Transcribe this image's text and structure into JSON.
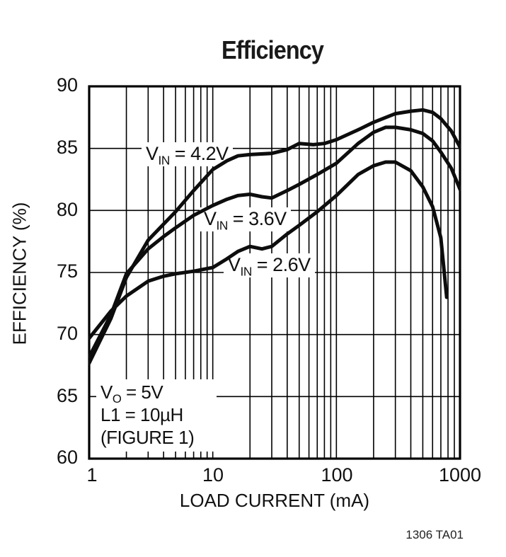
{
  "title": "Efficiency",
  "footer_code": "1306 TA01",
  "annotation": {
    "lines": [
      {
        "pre": "V",
        "sub": "O",
        "post": " = 5V"
      },
      {
        "pre": "L1 = 10µH",
        "sub": "",
        "post": ""
      },
      {
        "pre": "(FIGURE 1)",
        "sub": "",
        "post": ""
      }
    ]
  },
  "chart_data": {
    "type": "line",
    "title": "Efficiency",
    "xlabel": "LOAD CURRENT (mA)",
    "ylabel": "EFFICIENCY (%)",
    "x_scale": "log",
    "xlim": [
      1,
      1000
    ],
    "ylim": [
      60,
      90
    ],
    "x_ticks": [
      "1",
      "10",
      "100",
      "1000"
    ],
    "y_ticks": [
      "60",
      "65",
      "70",
      "75",
      "80",
      "85",
      "90"
    ],
    "grid": true,
    "line_color": "#0d0d0d",
    "series": [
      {
        "name": "VIN = 4.2V",
        "label": {
          "pre": "V",
          "sub": "IN",
          "post": " = 4.2V"
        },
        "points": [
          [
            1,
            67.7
          ],
          [
            1.5,
            71.3
          ],
          [
            2,
            74.6
          ],
          [
            3,
            77.6
          ],
          [
            4,
            78.9
          ],
          [
            5,
            79.9
          ],
          [
            7,
            81.6
          ],
          [
            10,
            83.3
          ],
          [
            13,
            84.0
          ],
          [
            16,
            84.4
          ],
          [
            20,
            84.5
          ],
          [
            30,
            84.6
          ],
          [
            40,
            84.9
          ],
          [
            50,
            85.4
          ],
          [
            65,
            85.3
          ],
          [
            80,
            85.4
          ],
          [
            100,
            85.7
          ],
          [
            150,
            86.5
          ],
          [
            200,
            87.1
          ],
          [
            300,
            87.8
          ],
          [
            400,
            88.0
          ],
          [
            500,
            88.1
          ],
          [
            600,
            87.9
          ],
          [
            700,
            87.4
          ],
          [
            850,
            86.4
          ],
          [
            1000,
            85.1
          ]
        ]
      },
      {
        "name": "VIN = 3.6V",
        "label": {
          "pre": "V",
          "sub": "IN",
          "post": " = 3.6V"
        },
        "points": [
          [
            1,
            68.2
          ],
          [
            1.5,
            71.6
          ],
          [
            2,
            74.9
          ],
          [
            3,
            76.9
          ],
          [
            4,
            77.9
          ],
          [
            5,
            78.6
          ],
          [
            7,
            79.6
          ],
          [
            10,
            80.4
          ],
          [
            13,
            80.9
          ],
          [
            16,
            81.2
          ],
          [
            20,
            81.3
          ],
          [
            25,
            81.1
          ],
          [
            30,
            81.0
          ],
          [
            40,
            81.6
          ],
          [
            50,
            82.1
          ],
          [
            70,
            82.9
          ],
          [
            100,
            83.8
          ],
          [
            150,
            85.4
          ],
          [
            200,
            86.3
          ],
          [
            250,
            86.7
          ],
          [
            300,
            86.7
          ],
          [
            400,
            86.5
          ],
          [
            500,
            86.2
          ],
          [
            600,
            85.6
          ],
          [
            700,
            84.7
          ],
          [
            850,
            83.4
          ],
          [
            1000,
            81.7
          ]
        ]
      },
      {
        "name": "VIN = 2.6V",
        "label": {
          "pre": "V",
          "sub": "IN",
          "post": " = 2.6V"
        },
        "points": [
          [
            1,
            69.7
          ],
          [
            1.5,
            71.9
          ],
          [
            2,
            73.1
          ],
          [
            3,
            74.3
          ],
          [
            4,
            74.7
          ],
          [
            5,
            74.9
          ],
          [
            7,
            75.1
          ],
          [
            10,
            75.4
          ],
          [
            13,
            76.1
          ],
          [
            16,
            76.7
          ],
          [
            20,
            77.1
          ],
          [
            25,
            76.9
          ],
          [
            30,
            77.1
          ],
          [
            40,
            78.1
          ],
          [
            50,
            78.8
          ],
          [
            70,
            79.9
          ],
          [
            100,
            81.2
          ],
          [
            150,
            82.9
          ],
          [
            200,
            83.6
          ],
          [
            250,
            83.9
          ],
          [
            300,
            83.9
          ],
          [
            400,
            83.2
          ],
          [
            500,
            81.9
          ],
          [
            600,
            80.3
          ],
          [
            700,
            77.8
          ],
          [
            780,
            73.0
          ]
        ]
      }
    ]
  }
}
